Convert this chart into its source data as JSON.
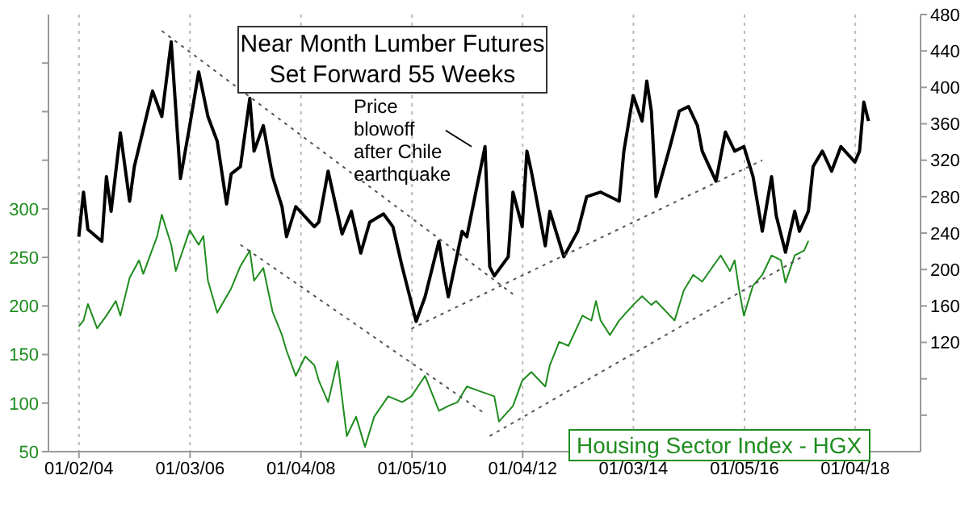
{
  "chart_data": {
    "type": "line",
    "title": "Near Month Lumber Futures",
    "subtitle": "Set Forward 55 Weeks",
    "annotations": [
      {
        "text": "Price blowoff after Chile earthquake",
        "x": "2011-02",
        "y": 335
      }
    ],
    "xlim": [
      "2003-06-15",
      "2019-03-10"
    ],
    "xticks": [
      {
        "value": "2004-01-02",
        "label": "01/02/04"
      },
      {
        "value": "2006-01-03",
        "label": "01/03/06"
      },
      {
        "value": "2008-01-04",
        "label": "01/04/08"
      },
      {
        "value": "2010-01-05",
        "label": "01/05/10"
      },
      {
        "value": "2012-01-04",
        "label": "01/04/12"
      },
      {
        "value": "2014-01-03",
        "label": "01/03/14"
      },
      {
        "value": "2016-01-05",
        "label": "01/05/16"
      },
      {
        "value": "2018-01-04",
        "label": "01/04/18"
      }
    ],
    "ylim": [
      50,
      500
    ],
    "yticks": [
      50,
      100,
      150,
      200,
      250,
      300,
      {
        "value": 350,
        "label": null
      },
      {
        "value": 400,
        "label": null
      },
      {
        "value": 450,
        "label": null
      }
    ],
    "y2lim": [
      0,
      480
    ],
    "y2ticks": [
      {
        "value": 40,
        "label": null
      },
      {
        "value": 80,
        "label": null
      },
      120,
      160,
      200,
      240,
      280,
      320,
      360,
      400,
      440,
      480
    ],
    "grid": "x",
    "legend": "bottom right",
    "marker": "none",
    "line_style": "solid",
    "series": [
      {
        "color": "#000000",
        "axis": "y2",
        "x": [
          "2004-01",
          "2004-02",
          "2004-03",
          "2004-06",
          "2004-07",
          "2004-08",
          "2004-10",
          "2004-12",
          "2005-01",
          "2005-05",
          "2005-07",
          "2005-09",
          "2005-11",
          "2006-01",
          "2006-03",
          "2006-05",
          "2006-07",
          "2006-09",
          "2006-10",
          "2006-12",
          "2007-02",
          "2007-03",
          "2007-05",
          "2007-07",
          "2007-09",
          "2007-10",
          "2007-12",
          "2008-04",
          "2008-05",
          "2008-07",
          "2008-10",
          "2008-12",
          "2009-02",
          "2009-04",
          "2009-07",
          "2009-09",
          "2009-11",
          "2010-02",
          "2010-04",
          "2010-07",
          "2010-08",
          "2010-09",
          "2010-12",
          "2011-01",
          "2011-05",
          "2011-06",
          "2011-07",
          "2011-10",
          "2011-11",
          "2012-01",
          "2012-02",
          "2012-03",
          "2012-06",
          "2012-07",
          "2012-10",
          "2013-01",
          "2013-03",
          "2013-06",
          "2013-10",
          "2013-11",
          "2014-01",
          "2014-03",
          "2014-04",
          "2014-05",
          "2014-06",
          "2014-09",
          "2014-11",
          "2015-01",
          "2015-03",
          "2015-04",
          "2015-07",
          "2015-09",
          "2015-11",
          "2016-01",
          "2016-03",
          "2016-05",
          "2016-07",
          "2016-08",
          "2016-10",
          "2016-12",
          "2017-01",
          "2017-03",
          "2017-04",
          "2017-06",
          "2017-08",
          "2017-10",
          "2018-01",
          "2018-02",
          "2018-03",
          "2018-04"
        ],
        "values": [
          236,
          285,
          244,
          231,
          302,
          264,
          350,
          275,
          313,
          396,
          368,
          450,
          300,
          358,
          417,
          368,
          341,
          272,
          305,
          313,
          388,
          330,
          358,
          302,
          269,
          236,
          269,
          247,
          252,
          308,
          239,
          264,
          218,
          252,
          261,
          247,
          203,
          143,
          170,
          231,
          198,
          170,
          242,
          236,
          335,
          203,
          193,
          214,
          285,
          247,
          330,
          308,
          226,
          264,
          214,
          242,
          280,
          285,
          275,
          330,
          391,
          363,
          407,
          374,
          280,
          335,
          374,
          379,
          358,
          330,
          297,
          351,
          330,
          335,
          302,
          242,
          302,
          259,
          219,
          264,
          242,
          264,
          313,
          330,
          308,
          335,
          318,
          330,
          384,
          363
        ]
      },
      {
        "name": "Housing Sector Index - HGX",
        "color": "#1e8c1e",
        "axis": "y",
        "x": [
          "2004-01",
          "2004-02",
          "2004-03",
          "2004-05",
          "2004-07",
          "2004-09",
          "2004-10",
          "2004-12",
          "2005-02",
          "2005-03",
          "2005-06",
          "2005-07",
          "2005-09",
          "2005-10",
          "2006-01",
          "2006-03",
          "2006-04",
          "2006-05",
          "2006-07",
          "2006-10",
          "2006-12",
          "2007-02",
          "2007-03",
          "2007-05",
          "2007-07",
          "2007-09",
          "2007-10",
          "2007-12",
          "2008-02",
          "2008-04",
          "2008-05",
          "2008-07",
          "2008-09",
          "2008-11",
          "2009-01",
          "2009-03",
          "2009-05",
          "2009-08",
          "2009-11",
          "2010-01",
          "2010-04",
          "2010-07",
          "2010-09",
          "2010-11",
          "2011-01",
          "2011-04",
          "2011-07",
          "2011-08",
          "2011-11",
          "2012-01",
          "2012-03",
          "2012-06",
          "2012-07",
          "2012-09",
          "2012-11",
          "2013-02",
          "2013-04",
          "2013-05",
          "2013-06",
          "2013-08",
          "2013-10",
          "2014-01",
          "2014-03",
          "2014-05",
          "2014-06",
          "2014-10",
          "2014-12",
          "2015-02",
          "2015-04",
          "2015-08",
          "2015-10",
          "2015-11",
          "2015-12",
          "2016-01",
          "2016-03",
          "2016-05",
          "2016-07",
          "2016-09",
          "2016-10",
          "2016-12",
          "2017-02",
          "2017-03"
        ],
        "values": [
          179,
          185,
          202,
          177,
          190,
          205,
          190,
          229,
          247,
          233,
          272,
          294,
          263,
          236,
          278,
          263,
          272,
          226,
          193,
          218,
          241,
          257,
          226,
          239,
          194,
          170,
          154,
          128,
          148,
          139,
          123,
          101,
          143,
          66,
          86,
          55,
          86,
          107,
          101,
          107,
          128,
          92,
          97,
          101,
          117,
          112,
          107,
          81,
          97,
          123,
          132,
          117,
          139,
          163,
          159,
          190,
          185,
          205,
          185,
          170,
          185,
          201,
          210,
          201,
          205,
          185,
          216,
          232,
          225,
          252,
          236,
          247,
          216,
          190,
          221,
          232,
          252,
          247,
          224,
          252,
          257,
          267
        ]
      },
      {
        "type": "line",
        "color": "#555555",
        "line_style": "dotted",
        "axis": "y2",
        "x": [
          "2005-07",
          "2011-11"
        ],
        "values": [
          462,
          173
        ]
      },
      {
        "type": "line",
        "color": "#555555",
        "line_style": "dotted",
        "axis": "y2",
        "x": [
          "2010-01",
          "2016-05"
        ],
        "values": [
          135,
          320
        ]
      },
      {
        "type": "line",
        "color": "#555555",
        "line_style": "dotted",
        "axis": "y",
        "x": [
          "2006-12",
          "2011-05"
        ],
        "values": [
          263,
          89
        ]
      },
      {
        "type": "line",
        "color": "#555555",
        "line_style": "dotted",
        "axis": "y",
        "x": [
          "2011-06",
          "2017-02"
        ],
        "values": [
          66,
          252
        ]
      }
    ]
  }
}
